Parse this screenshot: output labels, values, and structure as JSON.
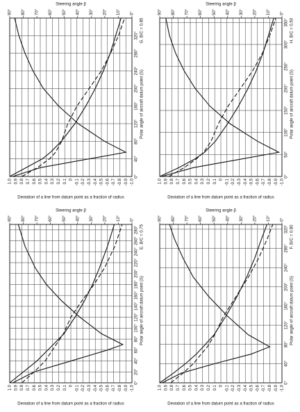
{
  "chart_data": [
    {
      "type": "line",
      "title": "G. B/C = 0.85",
      "xlabel": "Polar angle of aircraft datum point (S)",
      "ylabel": "Deviation of a line from datum point as a fraction of radius",
      "y2label": "Steering angle β",
      "x": [
        0,
        20,
        40,
        55,
        80,
        120,
        160,
        200,
        240,
        280,
        320,
        360
      ],
      "series": [
        {
          "color": "#111111",
          "dash": false,
          "values": [
            0.95,
            0.5,
            -0.3,
            -0.9,
            -0.55,
            -0.12,
            0.2,
            0.45,
            0.62,
            0.75,
            0.85,
            0.92
          ]
        },
        {
          "color": "#111111",
          "dash": true,
          "values": [
            0.8,
            0.55,
            0.35,
            0.25,
            0.15,
            0.05,
            -0.1,
            -0.3,
            -0.5,
            -0.65,
            -0.78,
            -0.88
          ]
        },
        {
          "color": "#111111",
          "dash": false,
          "axis": "y2",
          "values": [
            90,
            78,
            66,
            60,
            52,
            42,
            34,
            27,
            21,
            16,
            12,
            8
          ]
        }
      ],
      "xlim": [
        0,
        360
      ],
      "xticks": [
        {
          "value": 0,
          "label": "0°"
        },
        {
          "value": 40,
          "label": "40°"
        },
        {
          "value": 80,
          "label": "80°"
        },
        {
          "value": 120,
          "label": "120°"
        },
        {
          "value": 160,
          "label": "160°"
        },
        {
          "value": 200,
          "label": "200°"
        },
        {
          "value": 240,
          "label": "240°"
        },
        {
          "value": 280,
          "label": "280°"
        },
        {
          "value": 320,
          "label": "320°"
        }
      ],
      "ylim": [
        -1,
        1
      ],
      "yticks": [
        {
          "value": 1,
          "label": "1.0"
        },
        0.9,
        0.8,
        0.7,
        0.6,
        0.5,
        0.4,
        0.3,
        0.2,
        0.1,
        0,
        -0.1,
        -0.2,
        -0.3,
        -0.4,
        -0.5,
        -0.6,
        -0.7,
        -0.8,
        -0.9,
        {
          "value": -1,
          "label": "-1.0"
        }
      ],
      "y2lim": [
        0,
        90
      ],
      "y2ticks": [
        {
          "value": 0,
          "label": "0°"
        },
        {
          "value": 10,
          "label": "10°"
        },
        {
          "value": 20,
          "label": "20°"
        },
        {
          "value": 30,
          "label": "30°"
        },
        {
          "value": 40,
          "label": "40°"
        },
        {
          "value": 50,
          "label": "50°"
        },
        {
          "value": 60,
          "label": "60°"
        },
        {
          "value": 70,
          "label": "70°"
        },
        {
          "value": 80,
          "label": "80°"
        },
        {
          "value": 90,
          "label": "90°"
        }
      ],
      "grid": true
    },
    {
      "type": "line",
      "title": "H. B/C = 0.50",
      "xlabel": "Polar angle of aircraft datum point (S)",
      "ylabel": "Deviation of a line from datum point as a fraction of radius",
      "y2label": "Steering angle β",
      "x": [
        0,
        20,
        40,
        55,
        80,
        120,
        160,
        200,
        240,
        280,
        320,
        360
      ],
      "series": [
        {
          "color": "#111111",
          "dash": false,
          "values": [
            0.97,
            0.45,
            -0.35,
            -0.95,
            -0.6,
            -0.15,
            0.18,
            0.42,
            0.6,
            0.74,
            0.84,
            0.9
          ]
        },
        {
          "color": "#111111",
          "dash": true,
          "values": [
            0.85,
            0.6,
            0.4,
            0.28,
            0.16,
            0.04,
            -0.12,
            -0.32,
            -0.52,
            -0.68,
            -0.8,
            -0.9
          ]
        },
        {
          "color": "#111111",
          "dash": false,
          "axis": "y2",
          "values": [
            90,
            76,
            64,
            57,
            49,
            40,
            32,
            25,
            19,
            14,
            10,
            6
          ]
        }
      ],
      "xlim": [
        0,
        360
      ],
      "xticks": [
        {
          "value": 0,
          "label": "0°"
        },
        {
          "value": 50,
          "label": "50°"
        },
        {
          "value": 100,
          "label": "100°"
        },
        {
          "value": 150,
          "label": "150°"
        },
        {
          "value": 200,
          "label": "200°"
        },
        {
          "value": 250,
          "label": "250°"
        },
        {
          "value": 300,
          "label": "300°"
        },
        {
          "value": 350,
          "label": "350°"
        }
      ],
      "ylim": [
        -1,
        1
      ],
      "yticks": [
        {
          "value": 1,
          "label": "1.0"
        },
        0.9,
        0.8,
        0.7,
        0.6,
        0.5,
        0.4,
        0.3,
        0.2,
        0.1,
        0,
        -0.1,
        -0.2,
        -0.3,
        -0.4,
        -0.5,
        -0.6,
        -0.7,
        -0.8,
        -0.9,
        {
          "value": -1,
          "label": "-1.0"
        }
      ],
      "y2lim": [
        0,
        90
      ],
      "y2ticks": [
        {
          "value": 0,
          "label": "0°"
        },
        {
          "value": 10,
          "label": "10°"
        },
        {
          "value": 20,
          "label": "20°"
        },
        {
          "value": 30,
          "label": "30°"
        },
        {
          "value": 40,
          "label": "40°"
        },
        {
          "value": 50,
          "label": "50°"
        },
        {
          "value": 60,
          "label": "60°"
        },
        {
          "value": 70,
          "label": "70°"
        },
        {
          "value": 80,
          "label": "80°"
        },
        {
          "value": 90,
          "label": "90°"
        }
      ],
      "grid": true
    },
    {
      "type": "line",
      "title": "E. B/C = 0.75",
      "xlabel": "Polar angle of aircraft datum point (S)",
      "ylabel": "Deviation of a line from datum point as a fraction of radius",
      "y2label": "Steering angle β",
      "x": [
        0,
        20,
        40,
        60,
        70,
        90,
        120,
        150,
        180,
        210,
        250,
        290
      ],
      "series": [
        {
          "color": "#111111",
          "dash": false,
          "values": [
            0.95,
            0.6,
            0.0,
            -0.6,
            -0.85,
            -0.5,
            -0.15,
            0.15,
            0.4,
            0.58,
            0.75,
            0.86
          ]
        },
        {
          "color": "#111111",
          "dash": true,
          "values": [
            0.8,
            0.6,
            0.42,
            0.3,
            0.24,
            0.12,
            0.0,
            -0.18,
            -0.38,
            -0.55,
            -0.72,
            -0.84
          ]
        },
        {
          "color": "#111111",
          "dash": false,
          "axis": "y2",
          "values": [
            90,
            80,
            70,
            62,
            58,
            50,
            42,
            35,
            29,
            24,
            18,
            13
          ]
        }
      ],
      "xlim": [
        0,
        290
      ],
      "xticks": [
        {
          "value": 0,
          "label": "0°"
        },
        {
          "value": 20,
          "label": "20°"
        },
        {
          "value": 40,
          "label": "40°"
        },
        {
          "value": 60,
          "label": "60°"
        },
        {
          "value": 80,
          "label": "80°"
        },
        {
          "value": 100,
          "label": "100°"
        },
        {
          "value": 120,
          "label": "120°"
        },
        {
          "value": 140,
          "label": "140°"
        },
        {
          "value": 160,
          "label": "160°"
        },
        {
          "value": 180,
          "label": "180°"
        },
        {
          "value": 200,
          "label": "200°"
        },
        {
          "value": 220,
          "label": "220°"
        },
        {
          "value": 240,
          "label": "240°"
        },
        {
          "value": 260,
          "label": "260°"
        },
        {
          "value": 280,
          "label": "280°"
        }
      ],
      "ylim": [
        -1,
        1
      ],
      "yticks": [
        {
          "value": 1,
          "label": "1.0"
        },
        0.9,
        0.8,
        0.7,
        0.6,
        0.5,
        0.4,
        0.3,
        0.2,
        0.1,
        0,
        -0.1,
        -0.2,
        -0.3,
        -0.4,
        -0.5,
        -0.6,
        -0.7,
        -0.8,
        -0.9,
        {
          "value": -1,
          "label": "-1.0"
        }
      ],
      "y2lim": [
        0,
        90
      ],
      "y2ticks": [
        {
          "value": 0,
          "label": "0°"
        },
        {
          "value": 10,
          "label": "10°"
        },
        {
          "value": 20,
          "label": "20°"
        },
        {
          "value": 30,
          "label": "30°"
        },
        {
          "value": 40,
          "label": "40°"
        },
        {
          "value": 50,
          "label": "50°"
        },
        {
          "value": 60,
          "label": "60°"
        },
        {
          "value": 70,
          "label": "70°"
        },
        {
          "value": 80,
          "label": "80°"
        },
        {
          "value": 90,
          "label": "90°"
        }
      ],
      "grid": true
    },
    {
      "type": "line",
      "title": "F. B/C = 0.80",
      "xlabel": "Polar angle of aircraft datum point (S)",
      "ylabel": "Deviation of a line from datum point as a fraction of radius",
      "y2label": "Steering angle β",
      "x": [
        0,
        20,
        40,
        60,
        75,
        100,
        140,
        180,
        220,
        260,
        300,
        330
      ],
      "series": [
        {
          "color": "#111111",
          "dash": false,
          "values": [
            0.96,
            0.65,
            0.1,
            -0.5,
            -0.8,
            -0.45,
            -0.1,
            0.2,
            0.45,
            0.62,
            0.76,
            0.84
          ]
        },
        {
          "color": "#111111",
          "dash": true,
          "values": [
            0.82,
            0.62,
            0.45,
            0.32,
            0.22,
            0.1,
            -0.05,
            -0.25,
            -0.45,
            -0.62,
            -0.76,
            -0.85
          ]
        },
        {
          "color": "#111111",
          "dash": false,
          "axis": "y2",
          "values": [
            90,
            80,
            71,
            63,
            58,
            50,
            41,
            33,
            26,
            20,
            15,
            11
          ]
        }
      ],
      "xlim": [
        0,
        330
      ],
      "xticks": [
        {
          "value": 0,
          "label": "0°"
        },
        {
          "value": 40,
          "label": "40°"
        },
        {
          "value": 80,
          "label": "80°"
        },
        {
          "value": 120,
          "label": "120°"
        },
        {
          "value": 160,
          "label": "160°"
        },
        {
          "value": 200,
          "label": "200°"
        },
        {
          "value": 240,
          "label": "240°"
        },
        {
          "value": 280,
          "label": "280°"
        },
        {
          "value": 320,
          "label": "320°"
        }
      ],
      "ylim": [
        -1,
        1
      ],
      "yticks": [
        {
          "value": 1,
          "label": "1.0"
        },
        0.9,
        0.8,
        0.7,
        0.6,
        0.5,
        0.4,
        0.3,
        0.2,
        0.1,
        0,
        -0.1,
        -0.2,
        -0.3,
        -0.4,
        -0.5,
        -0.6,
        -0.7,
        -0.8,
        -0.9,
        {
          "value": -1,
          "label": "-1.0"
        }
      ],
      "y2lim": [
        0,
        90
      ],
      "y2ticks": [
        {
          "value": 0,
          "label": "0°"
        },
        {
          "value": 10,
          "label": "10°"
        },
        {
          "value": 20,
          "label": "20°"
        },
        {
          "value": 30,
          "label": "30°"
        },
        {
          "value": 40,
          "label": "40°"
        },
        {
          "value": 50,
          "label": "50°"
        },
        {
          "value": 60,
          "label": "60°"
        },
        {
          "value": 70,
          "label": "70°"
        },
        {
          "value": 80,
          "label": "80°"
        },
        {
          "value": 90,
          "label": "90°"
        }
      ],
      "grid": true
    }
  ]
}
